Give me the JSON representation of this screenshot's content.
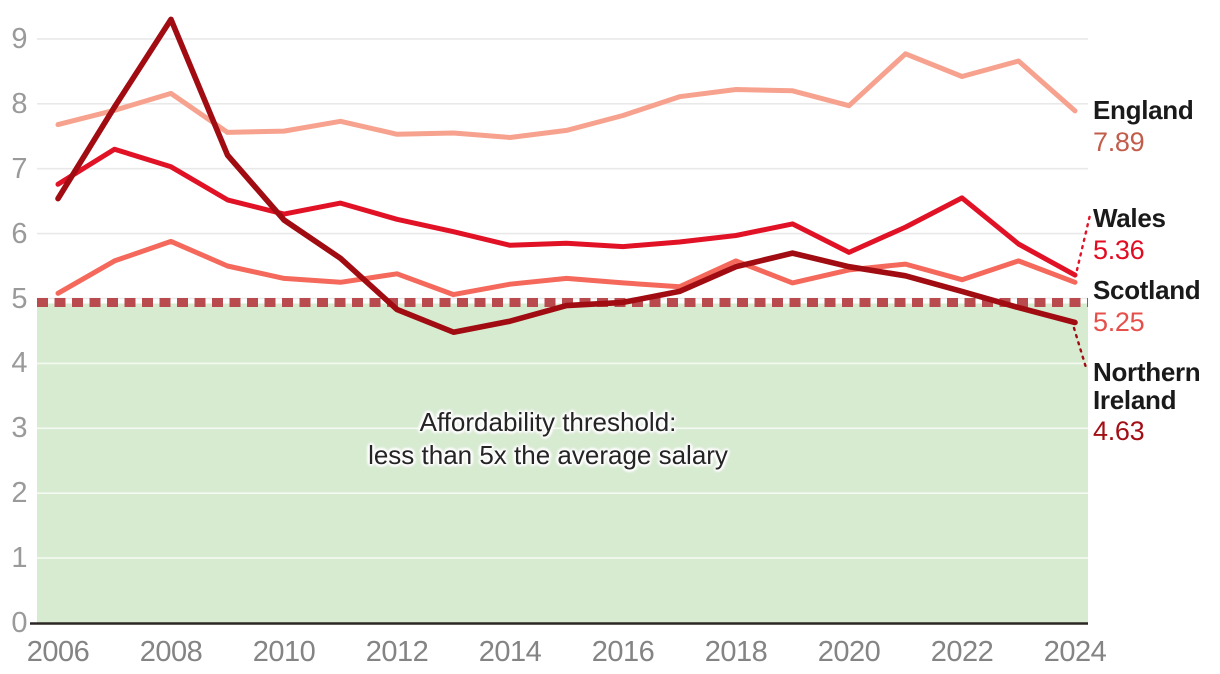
{
  "chart_data": {
    "type": "line",
    "title": "",
    "xlabel": "",
    "ylabel": "",
    "x": [
      2006,
      2007,
      2008,
      2009,
      2010,
      2011,
      2012,
      2013,
      2014,
      2015,
      2016,
      2017,
      2018,
      2019,
      2020,
      2021,
      2022,
      2023,
      2024
    ],
    "x_ticks": [
      2006,
      2008,
      2010,
      2012,
      2014,
      2016,
      2018,
      2020,
      2022,
      2024
    ],
    "y_ticks": [
      0,
      1,
      2,
      3,
      4,
      5,
      6,
      7,
      8,
      9
    ],
    "ylim": [
      0,
      9.5
    ],
    "grid": true,
    "legend_position": "right",
    "series": [
      {
        "name": "England",
        "end_label": "7.89",
        "color": "#f7a28e",
        "end_label_color": "#c25d4b",
        "values": [
          7.68,
          7.9,
          8.16,
          7.56,
          7.58,
          7.73,
          7.53,
          7.55,
          7.48,
          7.59,
          7.82,
          8.11,
          8.22,
          8.2,
          7.97,
          8.77,
          8.42,
          8.66,
          7.89
        ]
      },
      {
        "name": "Wales",
        "end_label": "5.36",
        "color": "#e11226",
        "end_label_color": "#e30b22",
        "values": [
          6.76,
          7.3,
          7.03,
          6.52,
          6.3,
          6.47,
          6.22,
          6.03,
          5.82,
          5.85,
          5.8,
          5.87,
          5.97,
          6.15,
          5.71,
          6.1,
          6.55,
          5.84,
          5.36
        ]
      },
      {
        "name": "Scotland",
        "end_label": "5.25",
        "color": "#f4695b",
        "end_label_color": "#e6504b",
        "values": [
          5.08,
          5.58,
          5.88,
          5.5,
          5.31,
          5.25,
          5.38,
          5.06,
          5.22,
          5.31,
          5.24,
          5.18,
          5.58,
          5.24,
          5.44,
          5.53,
          5.29,
          5.58,
          5.25
        ]
      },
      {
        "name": "Northern Ireland",
        "end_label": "4.63",
        "color": "#a00c11",
        "end_label_color": "#a21015",
        "values": [
          6.54,
          7.95,
          9.3,
          7.21,
          6.21,
          5.62,
          4.83,
          4.48,
          4.65,
          4.89,
          4.94,
          5.11,
          5.49,
          5.7,
          5.49,
          5.35,
          5.11,
          4.86,
          4.63
        ]
      }
    ],
    "threshold": {
      "value": 5,
      "line_color": "#b94b4f",
      "area_color": "#d7ebd1",
      "annotation_line1": "Affordability threshold:",
      "annotation_line2": "less than 5x the average salary"
    },
    "axis_color": "#2b2724",
    "gridline_color": "#e9e9e9"
  }
}
